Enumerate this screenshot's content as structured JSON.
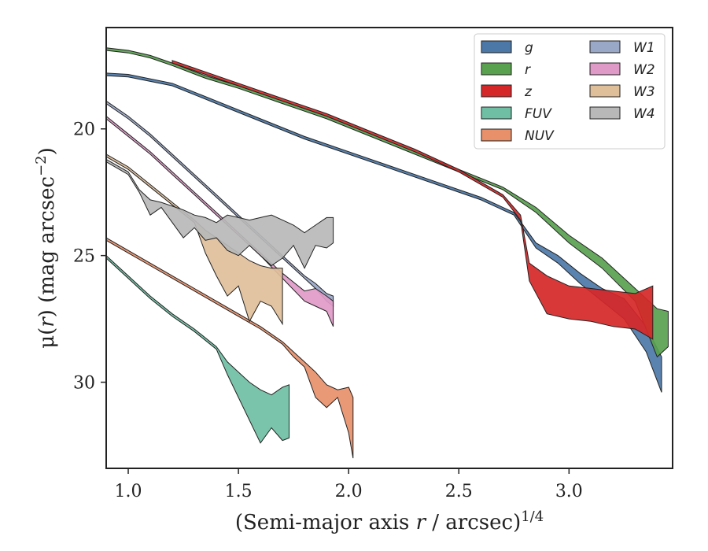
{
  "chart_data": {
    "type": "area",
    "xlabel_prefix": "(Semi-major axis ",
    "xlabel_var": "r",
    "xlabel_suffix": " / arcsec)",
    "xlabel_sup": "1/4",
    "ylabel_prefix": "μ(",
    "ylabel_var": "r",
    "ylabel_suffix": ") (mag arcsec",
    "ylabel_sup": "−2",
    "ylabel_close": ")",
    "xlim": [
      0.9,
      3.47
    ],
    "ylim": [
      33.4,
      16.0
    ],
    "y_inverted": true,
    "xticks": [
      1.0,
      1.5,
      2.0,
      2.5,
      3.0
    ],
    "xtick_labels": [
      "1.0",
      "1.5",
      "2.0",
      "2.5",
      "3.0"
    ],
    "yticks": [
      20,
      25,
      30
    ],
    "ytick_labels": [
      "20",
      "25",
      "30"
    ],
    "grid": false,
    "legend_position": "top-right",
    "legend_columns": 2,
    "series": [
      {
        "name": "g",
        "color": "#4c78a8",
        "x": [
          0.9,
          1.0,
          1.2,
          1.4,
          1.6,
          1.8,
          2.0,
          2.2,
          2.4,
          2.6,
          2.75,
          2.85,
          2.95,
          3.05,
          3.15,
          3.25,
          3.35,
          3.42
        ],
        "y_upper": [
          17.8,
          17.85,
          18.2,
          18.9,
          19.6,
          20.3,
          20.9,
          21.5,
          22.1,
          22.7,
          23.3,
          24.5,
          25.0,
          25.7,
          26.3,
          26.7,
          27.8,
          29.0
        ],
        "y_lower": [
          17.9,
          17.95,
          18.3,
          19.0,
          19.7,
          20.4,
          21.0,
          21.6,
          22.2,
          22.8,
          23.4,
          24.7,
          25.3,
          26.1,
          26.8,
          27.5,
          28.8,
          30.4
        ]
      },
      {
        "name": "r",
        "color": "#59a14f",
        "x": [
          0.9,
          1.0,
          1.1,
          1.2,
          1.35,
          1.5,
          1.7,
          1.9,
          2.1,
          2.3,
          2.5,
          2.7,
          2.85,
          3.0,
          3.15,
          3.3,
          3.4,
          3.45
        ],
        "y_upper": [
          16.8,
          16.9,
          17.1,
          17.4,
          17.9,
          18.3,
          18.9,
          19.5,
          20.2,
          20.9,
          21.6,
          22.3,
          23.1,
          24.2,
          25.1,
          26.3,
          27.1,
          27.2
        ],
        "y_lower": [
          16.9,
          17.0,
          17.2,
          17.5,
          18.0,
          18.4,
          19.0,
          19.6,
          20.3,
          21.0,
          21.7,
          22.4,
          23.3,
          24.5,
          25.5,
          26.8,
          29.0,
          28.6
        ]
      },
      {
        "name": "z",
        "color": "#d62728",
        "x": [
          1.2,
          1.3,
          1.5,
          1.7,
          1.9,
          2.1,
          2.3,
          2.5,
          2.7,
          2.78,
          2.82,
          2.9,
          3.0,
          3.1,
          3.2,
          3.3,
          3.38
        ],
        "y_upper": [
          17.3,
          17.6,
          18.2,
          18.8,
          19.4,
          20.1,
          20.8,
          21.6,
          22.6,
          23.4,
          25.3,
          25.8,
          26.2,
          26.3,
          26.4,
          26.5,
          26.2
        ],
        "y_lower": [
          17.4,
          17.7,
          18.3,
          18.9,
          19.5,
          20.2,
          20.9,
          21.7,
          22.7,
          23.6,
          26.0,
          27.3,
          27.5,
          27.6,
          27.8,
          27.9,
          28.3
        ]
      },
      {
        "name": "FUV",
        "color": "#6fbfa5",
        "x": [
          0.9,
          1.0,
          1.1,
          1.2,
          1.3,
          1.4,
          1.45,
          1.5,
          1.55,
          1.6,
          1.65,
          1.7,
          1.73
        ],
        "y_upper": [
          25.0,
          25.8,
          26.6,
          27.3,
          27.9,
          28.6,
          29.2,
          29.6,
          30.0,
          30.3,
          30.5,
          30.2,
          30.1
        ],
        "y_lower": [
          25.1,
          25.9,
          26.7,
          27.4,
          28.0,
          28.7,
          29.7,
          30.6,
          31.5,
          32.4,
          31.8,
          32.3,
          32.2
        ]
      },
      {
        "name": "NUV",
        "color": "#e8906a",
        "x": [
          0.9,
          1.0,
          1.1,
          1.2,
          1.3,
          1.4,
          1.5,
          1.6,
          1.7,
          1.75,
          1.8,
          1.85,
          1.9,
          1.95,
          2.0,
          2.02
        ],
        "y_upper": [
          24.3,
          24.8,
          25.3,
          25.8,
          26.3,
          26.8,
          27.3,
          27.8,
          28.4,
          28.8,
          29.2,
          29.6,
          30.1,
          30.3,
          30.2,
          30.6
        ],
        "y_lower": [
          24.4,
          24.9,
          25.4,
          25.9,
          26.4,
          26.9,
          27.4,
          27.9,
          28.5,
          29.0,
          29.4,
          30.6,
          31.0,
          30.6,
          32.0,
          33.0
        ]
      },
      {
        "name": "W1",
        "color": "#9aa8c8",
        "x": [
          0.9,
          1.0,
          1.1,
          1.2,
          1.3,
          1.4,
          1.5,
          1.6,
          1.7,
          1.8,
          1.85,
          1.9,
          1.93
        ],
        "y_upper": [
          18.9,
          19.5,
          20.2,
          21.0,
          21.8,
          22.6,
          23.4,
          24.2,
          25.0,
          25.8,
          26.1,
          26.5,
          26.6
        ],
        "y_lower": [
          19.0,
          19.6,
          20.3,
          21.1,
          21.9,
          22.7,
          23.5,
          24.3,
          25.1,
          25.9,
          26.3,
          26.8,
          27.0
        ]
      },
      {
        "name": "W2",
        "color": "#e09ac8",
        "x": [
          0.9,
          1.0,
          1.1,
          1.2,
          1.3,
          1.4,
          1.5,
          1.6,
          1.7,
          1.8,
          1.85,
          1.9,
          1.93
        ],
        "y_upper": [
          19.5,
          20.2,
          20.9,
          21.7,
          22.5,
          23.3,
          24.1,
          24.9,
          25.7,
          26.4,
          26.3,
          26.6,
          26.8
        ],
        "y_lower": [
          19.6,
          20.3,
          21.0,
          21.8,
          22.6,
          23.4,
          24.2,
          25.0,
          25.9,
          26.8,
          27.0,
          27.2,
          27.8
        ]
      },
      {
        "name": "W3",
        "color": "#dfbf9a",
        "x": [
          0.9,
          1.0,
          1.1,
          1.2,
          1.3,
          1.35,
          1.4,
          1.45,
          1.5,
          1.55,
          1.6,
          1.65,
          1.7
        ],
        "y_upper": [
          21.0,
          21.5,
          22.2,
          22.9,
          23.6,
          24.0,
          24.3,
          24.6,
          24.9,
          25.2,
          25.4,
          25.5,
          25.5
        ],
        "y_lower": [
          21.1,
          21.6,
          22.3,
          23.0,
          23.7,
          24.9,
          25.8,
          26.6,
          26.2,
          27.6,
          26.8,
          27.0,
          27.7
        ]
      },
      {
        "name": "W4",
        "color": "#b8b8b8",
        "x": [
          0.9,
          1.0,
          1.05,
          1.1,
          1.15,
          1.25,
          1.3,
          1.35,
          1.4,
          1.45,
          1.5,
          1.55,
          1.6,
          1.65,
          1.7,
          1.75,
          1.8,
          1.85,
          1.9,
          1.93
        ],
        "y_upper": [
          21.2,
          21.7,
          22.4,
          22.8,
          22.9,
          23.2,
          23.4,
          23.5,
          23.7,
          23.4,
          23.5,
          23.6,
          23.5,
          23.4,
          23.6,
          23.8,
          24.1,
          23.8,
          23.5,
          23.5
        ],
        "y_lower": [
          21.3,
          21.8,
          22.5,
          23.4,
          23.1,
          24.3,
          23.9,
          24.4,
          24.3,
          24.8,
          25.0,
          24.6,
          25.0,
          25.4,
          25.1,
          24.6,
          25.5,
          24.6,
          24.7,
          24.5
        ]
      }
    ]
  }
}
